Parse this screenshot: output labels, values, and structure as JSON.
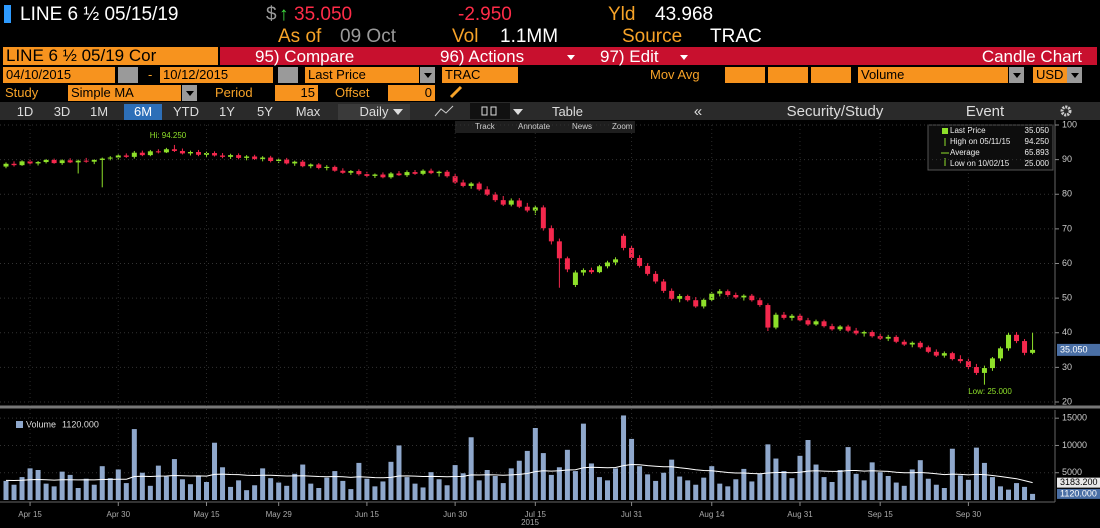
{
  "header": {
    "ticker": "LINE 6 ½ 05/15/19",
    "price_prefix": "$",
    "arrow": "↑",
    "price": "35.050",
    "change": "-2.950",
    "yld_label": "Yld",
    "yld": "43.968",
    "as_of": "As of",
    "date": "09 Oct",
    "vol_label": "Vol",
    "vol": "1.1MM",
    "source_label": "Source",
    "source": "TRAC"
  },
  "toolbar": {
    "security": "LINE 6 ½ 05/19 Cor",
    "menu": [
      "95) Compare",
      "96) Actions",
      "97) Edit"
    ],
    "chart_name": "Candle Chart",
    "start_date": "04/10/2015",
    "date_sep": "-",
    "end_date": "10/12/2015",
    "field": "Last Price",
    "pricing_source": "TRAC",
    "mov_avg": "Mov Avg",
    "lower_study": "Volume",
    "currency": "USD",
    "study_label": "Study",
    "study": "Simple MA",
    "period_label": "Period",
    "period": "15",
    "offset_label": "Offset",
    "offset": "0",
    "ranges": [
      "1D",
      "3D",
      "1M",
      "6M",
      "YTD",
      "1Y",
      "5Y",
      "Max"
    ],
    "frequency": "Daily",
    "table": "Table",
    "back": "«",
    "security_study": "Security/Study",
    "event": "Event",
    "chart_tools": [
      "Track",
      "Annotate",
      "News",
      "Zoom"
    ]
  },
  "chart_data": [
    {
      "type": "candlestick",
      "up_color": "#8ee02a",
      "down_color": "#f4284d",
      "ylim": [
        20,
        100
      ],
      "yticks": [
        20,
        30,
        40,
        50,
        60,
        70,
        80,
        90,
        100
      ],
      "grid": true,
      "high_label": "Hi: 94.250",
      "low_label": "Low: 25.000",
      "last_label": "35.050",
      "legend": [
        {
          "label": "Last Price",
          "value": "35.050"
        },
        {
          "label": "High on 05/11/15",
          "value": "94.250"
        },
        {
          "label": "Average",
          "value": "65.893"
        },
        {
          "label": "Low on 10/02/15",
          "value": "25.000"
        }
      ],
      "ohlc": [
        [
          88.0,
          89.2,
          87.5,
          88.8
        ],
        [
          88.8,
          89.5,
          88.0,
          88.4
        ],
        [
          88.4,
          89.8,
          88.2,
          89.5
        ],
        [
          89.5,
          90.0,
          88.6,
          88.9
        ],
        [
          88.9,
          89.6,
          88.3,
          89.3
        ],
        [
          89.3,
          90.2,
          88.9,
          89.9
        ],
        [
          89.9,
          90.3,
          88.8,
          89.0
        ],
        [
          89.0,
          90.1,
          88.5,
          89.8
        ],
        [
          89.8,
          90.4,
          89.0,
          89.2
        ],
        [
          89.2,
          90.0,
          86.0,
          89.7
        ],
        [
          89.7,
          90.5,
          89.1,
          89.4
        ],
        [
          89.4,
          90.1,
          88.7,
          89.9
        ],
        [
          89.9,
          90.6,
          82.0,
          90.3
        ],
        [
          90.3,
          91.0,
          89.8,
          90.6
        ],
        [
          90.6,
          91.5,
          90.0,
          91.2
        ],
        [
          91.2,
          91.8,
          90.5,
          90.8
        ],
        [
          90.8,
          92.5,
          90.3,
          92.0
        ],
        [
          92.0,
          92.6,
          91.0,
          91.3
        ],
        [
          91.3,
          92.8,
          91.0,
          92.4
        ],
        [
          92.4,
          93.0,
          91.8,
          92.1
        ],
        [
          92.1,
          93.4,
          91.9,
          93.0
        ],
        [
          93.0,
          94.25,
          92.2,
          92.5
        ],
        [
          92.5,
          93.2,
          91.5,
          91.8
        ],
        [
          91.8,
          92.6,
          91.2,
          92.2
        ],
        [
          92.2,
          92.8,
          91.0,
          91.4
        ],
        [
          91.4,
          92.3,
          90.8,
          91.9
        ],
        [
          91.9,
          92.4,
          90.9,
          91.2
        ],
        [
          91.2,
          91.9,
          90.4,
          90.8
        ],
        [
          90.8,
          91.7,
          90.2,
          91.3
        ],
        [
          91.3,
          91.8,
          90.1,
          90.5
        ],
        [
          90.5,
          91.3,
          89.8,
          90.9
        ],
        [
          90.9,
          91.4,
          89.9,
          90.2
        ],
        [
          90.2,
          91.0,
          89.5,
          90.6
        ],
        [
          90.6,
          91.1,
          89.2,
          89.6
        ],
        [
          89.6,
          90.3,
          89.0,
          90.0
        ],
        [
          90.0,
          90.5,
          88.6,
          88.9
        ],
        [
          88.9,
          89.7,
          88.2,
          89.4
        ],
        [
          89.4,
          89.9,
          87.8,
          88.1
        ],
        [
          88.1,
          88.9,
          87.5,
          88.6
        ],
        [
          88.6,
          89.0,
          87.2,
          87.6
        ],
        [
          87.6,
          88.4,
          86.9,
          87.9
        ],
        [
          87.9,
          88.3,
          86.5,
          86.8
        ],
        [
          86.8,
          87.5,
          85.9,
          86.2
        ],
        [
          86.2,
          87.0,
          85.6,
          86.7
        ],
        [
          86.7,
          87.2,
          85.4,
          85.8
        ],
        [
          85.8,
          86.5,
          84.9,
          85.3
        ],
        [
          85.3,
          86.0,
          84.7,
          85.7
        ],
        [
          85.7,
          86.3,
          84.6,
          84.9
        ],
        [
          84.9,
          86.4,
          84.5,
          86.0
        ],
        [
          86.0,
          86.7,
          85.3,
          85.5
        ],
        [
          85.5,
          86.9,
          85.0,
          86.4
        ],
        [
          86.4,
          87.0,
          85.6,
          85.9
        ],
        [
          85.9,
          87.2,
          85.5,
          86.8
        ],
        [
          86.8,
          87.4,
          85.8,
          86.1
        ],
        [
          86.1,
          86.8,
          85.1,
          86.5
        ],
        [
          86.5,
          87.0,
          84.8,
          85.2
        ],
        [
          85.2,
          85.9,
          83.0,
          83.4
        ],
        [
          83.4,
          84.2,
          82.0,
          82.4
        ],
        [
          82.4,
          83.5,
          81.6,
          83.1
        ],
        [
          83.1,
          83.6,
          81.0,
          81.4
        ],
        [
          81.4,
          82.3,
          79.5,
          79.9
        ],
        [
          79.9,
          80.6,
          77.8,
          78.3
        ],
        [
          78.3,
          79.5,
          76.6,
          77.0
        ],
        [
          77.0,
          78.8,
          76.5,
          78.2
        ],
        [
          78.2,
          78.9,
          76.0,
          76.4
        ],
        [
          76.4,
          77.5,
          74.8,
          75.3
        ],
        [
          75.3,
          76.9,
          74.0,
          76.2
        ],
        [
          76.2,
          76.8,
          69.5,
          70.2
        ],
        [
          70.2,
          71.0,
          65.5,
          66.4
        ],
        [
          66.4,
          67.2,
          53.0,
          61.5
        ],
        [
          61.5,
          62.0,
          57.5,
          58.3
        ],
        [
          53.8,
          58.0,
          53.2,
          57.4
        ],
        [
          57.4,
          58.6,
          56.5,
          58.1
        ],
        [
          58.1,
          58.8,
          57.0,
          57.5
        ],
        [
          57.5,
          59.6,
          57.2,
          59.2
        ],
        [
          59.2,
          60.8,
          58.6,
          60.3
        ],
        [
          60.3,
          61.8,
          59.5,
          61.2
        ],
        [
          68.0,
          68.6,
          63.8,
          64.5
        ],
        [
          64.5,
          65.2,
          61.0,
          61.6
        ],
        [
          61.6,
          62.4,
          58.8,
          59.3
        ],
        [
          59.3,
          60.1,
          56.5,
          57.0
        ],
        [
          57.0,
          57.8,
          54.2,
          54.8
        ],
        [
          54.8,
          55.5,
          51.5,
          52.1
        ],
        [
          52.1,
          52.8,
          49.3,
          49.8
        ],
        [
          49.8,
          51.2,
          48.8,
          50.6
        ],
        [
          50.6,
          51.0,
          49.0,
          49.4
        ],
        [
          49.4,
          50.3,
          47.2,
          47.6
        ],
        [
          47.6,
          49.9,
          47.0,
          49.5
        ],
        [
          49.5,
          51.8,
          49.1,
          51.3
        ],
        [
          51.3,
          52.6,
          50.5,
          52.0
        ],
        [
          52.0,
          52.5,
          50.4,
          50.9
        ],
        [
          50.9,
          51.6,
          49.8,
          50.2
        ],
        [
          50.2,
          51.1,
          49.3,
          50.7
        ],
        [
          50.7,
          51.2,
          49.0,
          49.4
        ],
        [
          49.4,
          50.1,
          47.5,
          48.0
        ],
        [
          48.0,
          48.5,
          40.5,
          41.5
        ],
        [
          41.5,
          45.8,
          41.0,
          45.2
        ],
        [
          45.2,
          46.0,
          43.8,
          44.3
        ],
        [
          44.3,
          45.4,
          43.5,
          44.9
        ],
        [
          44.9,
          45.6,
          43.2,
          43.6
        ],
        [
          43.6,
          44.3,
          42.0,
          42.4
        ],
        [
          42.4,
          43.8,
          42.0,
          43.3
        ],
        [
          43.3,
          43.8,
          41.5,
          41.9
        ],
        [
          41.9,
          42.6,
          40.6,
          41.0
        ],
        [
          41.0,
          42.2,
          40.5,
          41.8
        ],
        [
          41.8,
          42.3,
          40.2,
          40.6
        ],
        [
          40.6,
          41.4,
          39.3,
          39.8
        ],
        [
          39.8,
          40.6,
          38.9,
          40.2
        ],
        [
          40.2,
          40.7,
          38.6,
          39.0
        ],
        [
          39.0,
          39.8,
          37.9,
          38.3
        ],
        [
          38.3,
          39.4,
          37.6,
          38.8
        ],
        [
          38.8,
          39.3,
          37.0,
          37.4
        ],
        [
          37.4,
          38.0,
          36.2,
          36.6
        ],
        [
          36.6,
          37.5,
          35.8,
          37.1
        ],
        [
          37.1,
          37.6,
          35.4,
          35.8
        ],
        [
          35.8,
          36.3,
          34.1,
          34.5
        ],
        [
          34.5,
          35.2,
          33.0,
          33.4
        ],
        [
          33.4,
          34.6,
          32.8,
          34.1
        ],
        [
          34.1,
          34.5,
          32.0,
          32.4
        ],
        [
          32.4,
          33.5,
          31.2,
          31.8
        ],
        [
          31.8,
          32.5,
          29.5,
          30.1
        ],
        [
          30.1,
          31.0,
          27.8,
          28.4
        ],
        [
          28.4,
          30.5,
          25.0,
          29.8
        ],
        [
          29.8,
          33.0,
          29.0,
          32.6
        ],
        [
          32.6,
          36.0,
          31.8,
          35.5
        ],
        [
          35.5,
          40.0,
          34.8,
          39.4
        ],
        [
          39.4,
          40.2,
          37.0,
          37.6
        ],
        [
          37.6,
          38.2,
          33.5,
          34.2
        ],
        [
          34.2,
          40.0,
          33.8,
          35.05
        ]
      ]
    },
    {
      "type": "bar",
      "year_label": "2015",
      "ylim": [
        0,
        16500
      ],
      "yticks": [
        5000,
        10000,
        15000
      ],
      "grid": true,
      "categories": [
        null,
        null,
        null,
        "Apr 15",
        null,
        null,
        null,
        null,
        null,
        null,
        null,
        null,
        null,
        null,
        "Apr 30",
        null,
        null,
        null,
        null,
        null,
        null,
        null,
        null,
        null,
        null,
        "May 15",
        null,
        null,
        null,
        null,
        null,
        null,
        null,
        null,
        "May 29",
        null,
        null,
        null,
        null,
        null,
        null,
        null,
        null,
        null,
        null,
        "Jun 15",
        null,
        null,
        null,
        null,
        null,
        null,
        null,
        null,
        null,
        null,
        "Jun 30",
        null,
        null,
        null,
        null,
        null,
        null,
        null,
        null,
        null,
        "Jul 15",
        null,
        null,
        null,
        null,
        null,
        null,
        null,
        null,
        null,
        null,
        null,
        "Jul 31",
        null,
        null,
        null,
        null,
        null,
        null,
        null,
        null,
        null,
        "Aug 14",
        null,
        null,
        null,
        null,
        null,
        null,
        null,
        null,
        null,
        null,
        "Aug 31",
        null,
        null,
        null,
        null,
        null,
        null,
        null,
        null,
        null,
        "Sep 15",
        null,
        null,
        null,
        null,
        null,
        null,
        null,
        null,
        null,
        null,
        "Sep 30",
        null,
        null,
        null,
        null,
        null,
        null,
        null,
        null
      ],
      "series": [
        {
          "name": "Volume",
          "color": "#8fa8cc",
          "last_label": "1120.000",
          "values": [
            3500,
            2800,
            4200,
            5800,
            5500,
            3000,
            2500,
            5200,
            4600,
            2200,
            3900,
            2800,
            6200,
            4000,
            5600,
            3100,
            13000,
            5000,
            2600,
            6300,
            4300,
            7500,
            3800,
            2900,
            4500,
            3300,
            10500,
            6000,
            2400,
            3600,
            1800,
            2700,
            5800,
            4000,
            3200,
            2600,
            4800,
            6500,
            3000,
            2200,
            4100,
            5300,
            3500,
            2000,
            6800,
            3900,
            2500,
            3400,
            7000,
            10000,
            4200,
            3000,
            2300,
            5100,
            3800,
            2700,
            6400,
            4900,
            11500,
            3600,
            5500,
            4400,
            3100,
            5800,
            7200,
            9000,
            13200,
            8600,
            4600,
            6000,
            9200,
            5300,
            14000,
            6700,
            4200,
            3600,
            5800,
            15500,
            11200,
            6200,
            4700,
            3500,
            5000,
            7400,
            4300,
            3600,
            2800,
            4100,
            6200,
            3000,
            2500,
            3800,
            5700,
            3400,
            4800,
            10200,
            7600,
            5300,
            4000,
            8100,
            11000,
            6500,
            4200,
            3300,
            5500,
            9700,
            4800,
            3600,
            6900,
            5100,
            4400,
            3200,
            2600,
            5600,
            7300,
            3900,
            2800,
            2200,
            9400,
            4500,
            3700,
            9600,
            6800,
            4200,
            2500,
            1900,
            3100,
            2400,
            1120
          ]
        },
        {
          "color": "#ffffff",
          "last_label": "3183.200",
          "values": [
            3600,
            3580,
            3620,
            3700,
            3750,
            3700,
            3650,
            3700,
            3720,
            3680,
            3700,
            3680,
            3750,
            3770,
            3820,
            3800,
            4300,
            4350,
            4300,
            4380,
            4400,
            4500,
            4450,
            4400,
            4420,
            4380,
            4700,
            4750,
            4680,
            4650,
            4550,
            4500,
            4550,
            4520,
            4480,
            4400,
            4420,
            4450,
            4380,
            4300,
            4280,
            4300,
            4250,
            4150,
            4250,
            4200,
            4100,
            4080,
            4150,
            4400,
            4420,
            4380,
            4300,
            4320,
            4300,
            4250,
            4300,
            4320,
            4600,
            4580,
            4620,
            4600,
            4550,
            4600,
            4700,
            4850,
            5200,
            5350,
            5300,
            5350,
            5500,
            5550,
            5900,
            6000,
            5950,
            5900,
            5950,
            6300,
            6500,
            6450,
            6300,
            6200,
            6100,
            6100,
            5900,
            5750,
            5550,
            5400,
            5350,
            5200,
            5050,
            4950,
            4950,
            4850,
            4800,
            4950,
            5050,
            5050,
            5000,
            5100,
            5300,
            5350,
            5300,
            5250,
            5250,
            5400,
            5400,
            5300,
            5350,
            5300,
            5250,
            5100,
            5000,
            5000,
            5050,
            4950,
            4800,
            4650,
            4750,
            4700,
            4600,
            4700,
            4650,
            4500,
            4300,
            4100,
            3900,
            3550,
            3183.2
          ]
        }
      ]
    }
  ]
}
